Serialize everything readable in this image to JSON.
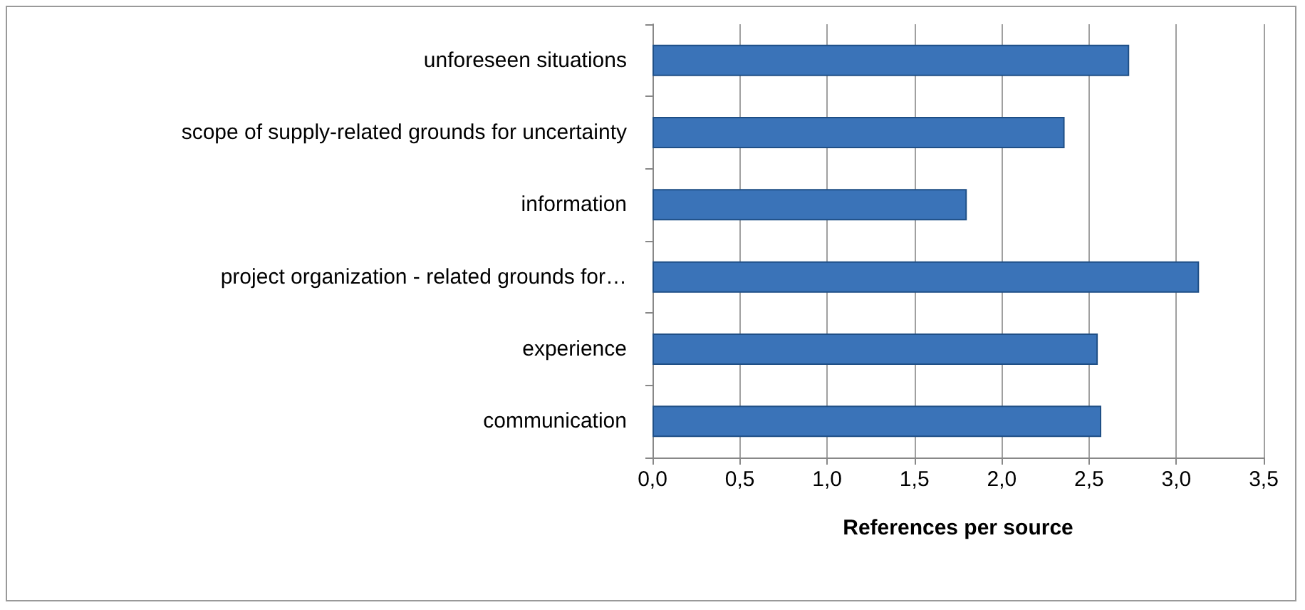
{
  "chart_data": {
    "type": "bar",
    "orientation": "horizontal",
    "categories": [
      "unforeseen situations",
      "scope of supply-related grounds for uncertainty",
      "information",
      "project organization - related grounds for…",
      "experience",
      "communication"
    ],
    "values": [
      2.73,
      2.36,
      1.8,
      3.13,
      2.55,
      2.57
    ],
    "color": "#3a73b8",
    "xlabel": "References per source",
    "xlim": [
      0,
      3.5
    ],
    "xticks": [
      {
        "value": 0,
        "label": "0,0"
      },
      {
        "value": 0.5,
        "label": "0,5"
      },
      {
        "value": 1,
        "label": "1,0"
      },
      {
        "value": 1.5,
        "label": "1,5"
      },
      {
        "value": 2,
        "label": "2,0"
      },
      {
        "value": 2.5,
        "label": "2,5"
      },
      {
        "value": 3,
        "label": "3,0"
      },
      {
        "value": 3.5,
        "label": "3,5"
      }
    ],
    "grid": "x"
  }
}
